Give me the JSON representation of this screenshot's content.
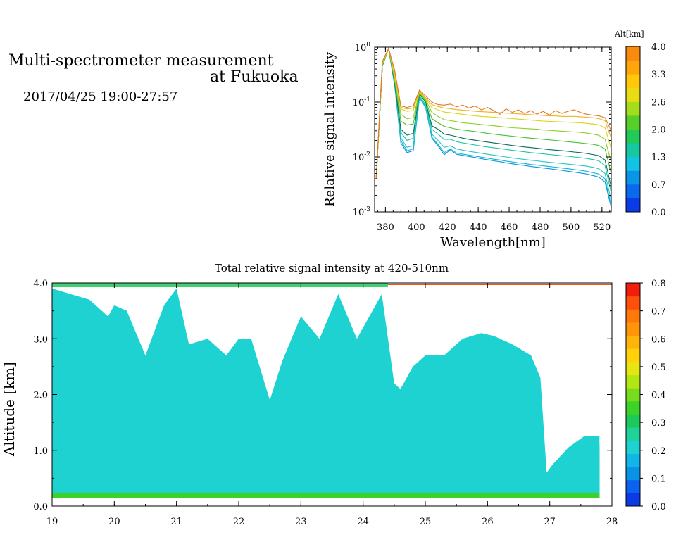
{
  "header": {
    "title_line1": "Multi-spectrometer measurement",
    "title_line2": "at Fukuoka",
    "datetime": "2017/04/25 19:00-27:57"
  },
  "chart_data": [
    {
      "id": "spectra",
      "type": "line",
      "xlabel": "Wavelength[nm]",
      "ylabel": "Relative signal intensity",
      "x_ticks": [
        "380",
        "400",
        "420",
        "440",
        "460",
        "480",
        "500",
        "520"
      ],
      "y_ticks": [
        "10^-3",
        "10^-2",
        "10^-1",
        "10^0"
      ],
      "xlim": [
        373,
        526
      ],
      "ylim": [
        0.001,
        1
      ],
      "yscale": "log",
      "x": [
        374,
        378,
        382,
        386,
        390,
        394,
        398,
        402,
        406,
        410,
        414,
        418,
        422,
        426,
        430,
        434,
        438,
        442,
        446,
        450,
        454,
        458,
        462,
        466,
        470,
        474,
        478,
        482,
        486,
        490,
        494,
        498,
        502,
        506,
        510,
        514,
        518,
        522,
        526
      ],
      "series": [
        {
          "alt": 0.1,
          "color": "#0a93e0",
          "values": [
            0.004,
            0.45,
            0.95,
            0.2,
            0.018,
            0.012,
            0.013,
            0.12,
            0.08,
            0.022,
            0.016,
            0.011,
            0.0135,
            0.0112,
            0.0107,
            0.0102,
            0.0098,
            0.0093,
            0.0089,
            0.0085,
            0.0082,
            0.0078,
            0.0075,
            0.0072,
            0.007,
            0.0067,
            0.0065,
            0.0063,
            0.0061,
            0.0059,
            0.0057,
            0.0055,
            0.0053,
            0.0051,
            0.0049,
            0.0046,
            0.0043,
            0.0035,
            0.0012
          ]
        },
        {
          "alt": 0.4,
          "color": "#0fb4d8",
          "values": [
            0.004,
            0.45,
            0.95,
            0.2,
            0.02,
            0.013,
            0.014,
            0.12,
            0.08,
            0.023,
            0.017,
            0.012,
            0.014,
            0.0118,
            0.0113,
            0.0108,
            0.0104,
            0.0099,
            0.0095,
            0.0091,
            0.0088,
            0.0084,
            0.0081,
            0.0078,
            0.0076,
            0.0073,
            0.0071,
            0.0069,
            0.0067,
            0.0065,
            0.0063,
            0.0061,
            0.0059,
            0.0057,
            0.0055,
            0.0052,
            0.0049,
            0.004,
            0.0013
          ]
        },
        {
          "alt": 0.6,
          "color": "#27c6c4",
          "values": [
            0.004,
            0.45,
            0.95,
            0.21,
            0.022,
            0.015,
            0.016,
            0.125,
            0.085,
            0.026,
            0.02,
            0.015,
            0.016,
            0.014,
            0.0133,
            0.0127,
            0.0122,
            0.0117,
            0.0112,
            0.0108,
            0.0104,
            0.01,
            0.0096,
            0.0093,
            0.009,
            0.0087,
            0.0085,
            0.0082,
            0.008,
            0.0078,
            0.0076,
            0.0074,
            0.0072,
            0.007,
            0.0068,
            0.0065,
            0.0061,
            0.005,
            0.0016
          ]
        },
        {
          "alt": 1.0,
          "color": "#17c7a0",
          "values": [
            0.004,
            0.46,
            0.95,
            0.22,
            0.028,
            0.02,
            0.022,
            0.13,
            0.09,
            0.032,
            0.026,
            0.021,
            0.021,
            0.019,
            0.018,
            0.0172,
            0.0165,
            0.0158,
            0.0152,
            0.0147,
            0.0142,
            0.0137,
            0.0132,
            0.0128,
            0.0124,
            0.012,
            0.0117,
            0.0114,
            0.0111,
            0.0108,
            0.0105,
            0.0103,
            0.01,
            0.0097,
            0.0094,
            0.009,
            0.0085,
            0.007,
            0.0022
          ]
        },
        {
          "alt": 1.3,
          "color": "#0f6a5a",
          "values": [
            0.004,
            0.46,
            0.95,
            0.22,
            0.032,
            0.025,
            0.027,
            0.14,
            0.1,
            0.037,
            0.032,
            0.026,
            0.025,
            0.0235,
            0.022,
            0.021,
            0.0202,
            0.0194,
            0.0187,
            0.018,
            0.0174,
            0.0168,
            0.0162,
            0.0157,
            0.0152,
            0.0148,
            0.0144,
            0.014,
            0.0136,
            0.0133,
            0.013,
            0.0127,
            0.0123,
            0.012,
            0.0116,
            0.0111,
            0.0105,
            0.0088,
            0.0028
          ]
        },
        {
          "alt": 1.8,
          "color": "#45c23a",
          "values": [
            0.004,
            0.47,
            0.95,
            0.24,
            0.045,
            0.038,
            0.04,
            0.145,
            0.105,
            0.05,
            0.042,
            0.036,
            0.034,
            0.032,
            0.031,
            0.03,
            0.029,
            0.028,
            0.027,
            0.026,
            0.0252,
            0.0245,
            0.0238,
            0.0232,
            0.0226,
            0.022,
            0.0215,
            0.021,
            0.0205,
            0.02,
            0.0195,
            0.019,
            0.0185,
            0.018,
            0.0175,
            0.017,
            0.0162,
            0.014,
            0.005
          ]
        },
        {
          "alt": 2.2,
          "color": "#8ccf24",
          "values": [
            0.004,
            0.48,
            0.95,
            0.26,
            0.06,
            0.05,
            0.052,
            0.15,
            0.11,
            0.065,
            0.055,
            0.048,
            0.046,
            0.044,
            0.042,
            0.041,
            0.04,
            0.039,
            0.038,
            0.037,
            0.036,
            0.035,
            0.034,
            0.0335,
            0.033,
            0.0325,
            0.032,
            0.031,
            0.0305,
            0.03,
            0.0295,
            0.029,
            0.0285,
            0.028,
            0.0272,
            0.0262,
            0.0248,
            0.021,
            0.008
          ]
        },
        {
          "alt": 2.7,
          "color": "#d8d41a",
          "values": [
            0.004,
            0.5,
            0.95,
            0.3,
            0.075,
            0.068,
            0.07,
            0.155,
            0.115,
            0.08,
            0.072,
            0.066,
            0.064,
            0.062,
            0.06,
            0.058,
            0.056,
            0.055,
            0.054,
            0.053,
            0.052,
            0.051,
            0.05,
            0.049,
            0.048,
            0.047,
            0.046,
            0.045,
            0.0445,
            0.044,
            0.0435,
            0.043,
            0.0425,
            0.042,
            0.041,
            0.0398,
            0.0385,
            0.034,
            0.014
          ]
        },
        {
          "alt": 3.2,
          "color": "#f0b020",
          "values": [
            0.004,
            0.52,
            0.95,
            0.34,
            0.08,
            0.075,
            0.078,
            0.16,
            0.12,
            0.09,
            0.083,
            0.078,
            0.076,
            0.073,
            0.071,
            0.07,
            0.068,
            0.067,
            0.066,
            0.065,
            0.064,
            0.063,
            0.062,
            0.061,
            0.06,
            0.059,
            0.058,
            0.057,
            0.056,
            0.056,
            0.055,
            0.055,
            0.055,
            0.054,
            0.053,
            0.052,
            0.05,
            0.046,
            0.022
          ]
        },
        {
          "alt": 3.7,
          "color": "#e07828",
          "values": [
            0.004,
            0.55,
            0.95,
            0.38,
            0.085,
            0.08,
            0.086,
            0.165,
            0.13,
            0.1,
            0.09,
            0.088,
            0.092,
            0.082,
            0.088,
            0.078,
            0.085,
            0.072,
            0.08,
            0.07,
            0.06,
            0.075,
            0.065,
            0.072,
            0.062,
            0.07,
            0.06,
            0.068,
            0.058,
            0.07,
            0.062,
            0.068,
            0.072,
            0.065,
            0.06,
            0.058,
            0.056,
            0.052,
            0.03
          ]
        }
      ]
    },
    {
      "id": "altitude-time",
      "type": "heatmap",
      "title": "Total relative signal intensity at 420-510nm",
      "xlabel": "",
      "ylabel": "Altitude [km]",
      "x_ticks": [
        "19",
        "20",
        "21",
        "22",
        "23",
        "24",
        "25",
        "26",
        "27",
        "28"
      ],
      "y_ticks": [
        "0.0",
        "1.0",
        "2.0",
        "3.0",
        "4.0"
      ],
      "xlim": [
        19,
        28
      ],
      "ylim": [
        0,
        4
      ],
      "profile_time": [
        19.0,
        19.3,
        19.6,
        19.9,
        20.0,
        20.2,
        20.5,
        20.8,
        21.0,
        21.2,
        21.5,
        21.8,
        22.0,
        22.2,
        22.5,
        22.7,
        23.0,
        23.3,
        23.6,
        23.9,
        24.3,
        24.5,
        24.6,
        24.8,
        25.0,
        25.3,
        25.6,
        25.9,
        26.1,
        26.4,
        26.7,
        26.85,
        26.95,
        27.05,
        27.3,
        27.55,
        27.8
      ],
      "cloud_base_km": [
        3.9,
        3.8,
        3.7,
        3.4,
        3.6,
        3.5,
        2.7,
        3.6,
        3.9,
        2.9,
        3.0,
        2.7,
        3.0,
        3.0,
        1.9,
        2.6,
        3.4,
        3.0,
        3.8,
        3.0,
        3.8,
        2.2,
        2.1,
        2.5,
        2.7,
        2.7,
        3.0,
        3.1,
        3.05,
        2.9,
        2.7,
        2.3,
        0.6,
        0.75,
        1.05,
        1.25,
        1.25
      ],
      "colorbar": {
        "ticks": [
          "0.0",
          "0.1",
          "0.2",
          "0.3",
          "0.4",
          "0.5",
          "0.6",
          "0.7",
          "0.8"
        ],
        "range": [
          0,
          0.8
        ],
        "colors": [
          "#0a3be6",
          "#0a62ee",
          "#0a93e6",
          "#12b6e6",
          "#1ed2d2",
          "#1ed29a",
          "#1ec85a",
          "#3cd228",
          "#78dc1e",
          "#b4e614",
          "#e6e614",
          "#ffd20a",
          "#ffb40a",
          "#ff960a",
          "#ff780a",
          "#ff500a",
          "#f01e0a"
        ]
      }
    }
  ],
  "alt_colorbar": {
    "label": "Alt[km]",
    "ticks": [
      "0.0",
      "0.7",
      "1.3",
      "2.0",
      "2.6",
      "3.3",
      "4.0"
    ],
    "colors": [
      "#0a3be6",
      "#0a6aee",
      "#0a96e6",
      "#13c3e6",
      "#17c7a0",
      "#21c85a",
      "#56d028",
      "#a6dc1e",
      "#e8dc14",
      "#ffc80a",
      "#ffa60a",
      "#f88a10"
    ]
  }
}
